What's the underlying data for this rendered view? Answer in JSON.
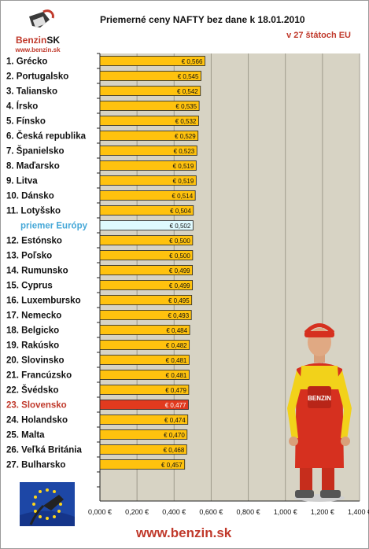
{
  "header": {
    "title": "Priemerné ceny NAFTY bez dane k 18.01.2010",
    "subtitle": "v 27 štátoch EU",
    "logo_text": "Benzin",
    "logo_text_sk": "SK",
    "logo_url": "www.benzin.sk"
  },
  "footer": {
    "url": "www.benzin.sk"
  },
  "colors": {
    "bar": "#ffc20e",
    "bar_highlight": "#e23a1e",
    "bar_average": "#dffaff",
    "plot_background": "#d7d3c4",
    "grid": "#9f9b8c",
    "label_highlight": "#c0392b",
    "label_average": "#46a8d8",
    "brand": "#c0392b"
  },
  "chart_data": {
    "type": "bar",
    "orientation": "horizontal",
    "categories": [
      "1. Grécko",
      "2. Portugalsko",
      "3. Taliansko",
      "4. Írsko",
      "5. Fínsko",
      "6. Česká republika",
      "7. Španielsko",
      "8. Maďarsko",
      "9. Litva",
      "10. Dánsko",
      "11. Lotyšsko",
      "priemer Európy",
      "12. Estónsko",
      "13. Poľsko",
      "14. Rumunsko",
      "15. Cyprus",
      "16. Luxembursko",
      "17. Nemecko",
      "18. Belgicko",
      "19. Rakúsko",
      "20. Slovinsko",
      "21. Francúzsko",
      "22. Švédsko",
      "23. Slovensko",
      "24. Holandsko",
      "25. Malta",
      "26. Veľká Británia",
      "27. Bulharsko"
    ],
    "values": [
      0.566,
      0.545,
      0.542,
      0.535,
      0.532,
      0.529,
      0.523,
      0.519,
      0.519,
      0.514,
      0.504,
      0.502,
      0.5,
      0.5,
      0.499,
      0.499,
      0.495,
      0.493,
      0.484,
      0.482,
      0.481,
      0.481,
      0.479,
      0.477,
      0.474,
      0.47,
      0.468,
      0.457
    ],
    "value_labels": [
      "€ 0,566",
      "€ 0,545",
      "€ 0,542",
      "€ 0,535",
      "€ 0,532",
      "€ 0,529",
      "€ 0,523",
      "€ 0,519",
      "€ 0,519",
      "€ 0,514",
      "€ 0,504",
      "€ 0,502",
      "€ 0,500",
      "€ 0,500",
      "€ 0,499",
      "€ 0,499",
      "€ 0,495",
      "€ 0,493",
      "€ 0,484",
      "€ 0,482",
      "€ 0,481",
      "€ 0,481",
      "€ 0,479",
      "€ 0,477",
      "€ 0,474",
      "€ 0,470",
      "€ 0,468",
      "€ 0,457"
    ],
    "highlight_category": "23. Slovensko",
    "average_category": "priemer Európy",
    "xlim": [
      0,
      1.4
    ],
    "xticks": [
      0,
      0.2,
      0.4,
      0.6,
      0.8,
      1.0,
      1.2,
      1.4
    ],
    "xtick_labels": [
      "0,000 €",
      "0,200 €",
      "0,400 €",
      "0,600 €",
      "0,800 €",
      "1,000 €",
      "1,200 €",
      "1,400 €"
    ],
    "grid": true
  }
}
